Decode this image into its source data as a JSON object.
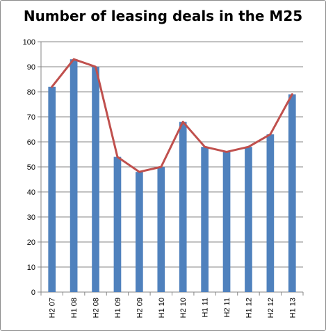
{
  "chart_data": {
    "type": "bar",
    "title": "Number of leasing deals in the M25",
    "categories": [
      "H2 07",
      "H1 08",
      "H2 08",
      "H1 09",
      "H2 09",
      "H1 10",
      "H2 10",
      "H1 11",
      "H2 11",
      "H1 12",
      "H2 12",
      "H1 13"
    ],
    "series": [
      {
        "type": "bar",
        "values": [
          82,
          93,
          90,
          54,
          48,
          50,
          68,
          58,
          56,
          58,
          63,
          79
        ],
        "color": "#4f81bd"
      },
      {
        "type": "line",
        "values": [
          82,
          93,
          90,
          54,
          48,
          50,
          68,
          58,
          56,
          58,
          63,
          79
        ],
        "color": "#c0504d"
      }
    ],
    "ylim": [
      0,
      100
    ],
    "yticks": [
      0,
      10,
      20,
      30,
      40,
      50,
      60,
      70,
      80,
      90,
      100
    ],
    "grid": true,
    "legend": "none",
    "xlabel": "",
    "ylabel": ""
  }
}
